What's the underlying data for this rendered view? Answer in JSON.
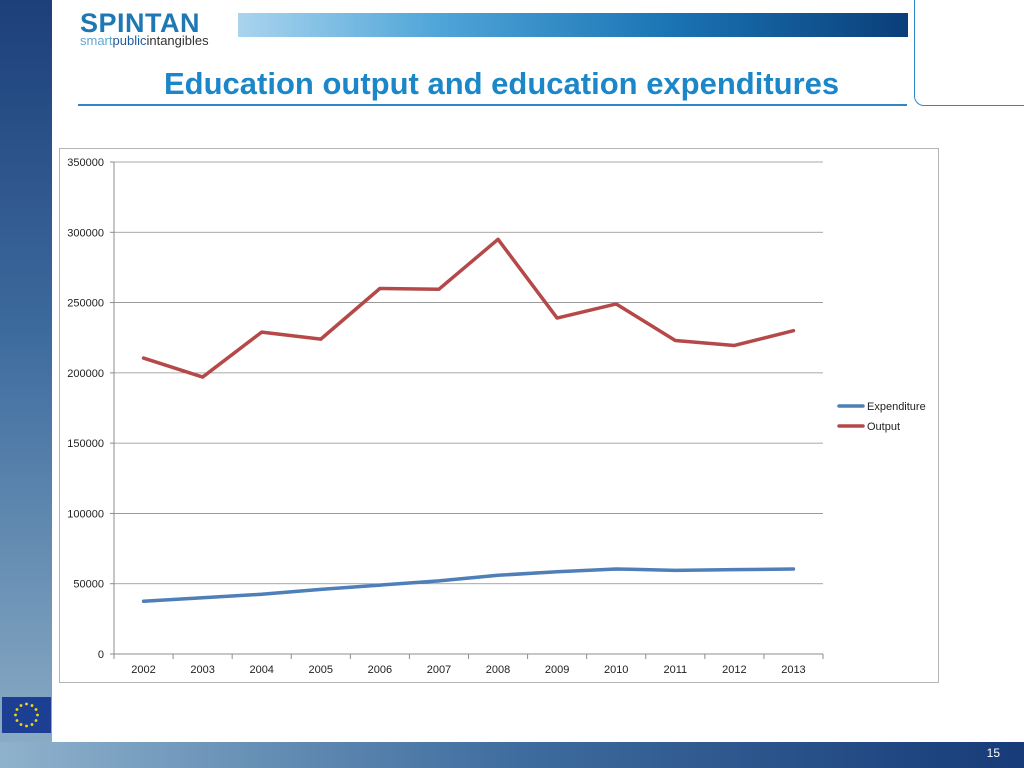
{
  "header": {
    "logo_main": "SPINTAN",
    "logo_sub_part1": "smart",
    "logo_sub_part2": "public",
    "logo_sub_part3": "intangibles",
    "title": "Education output and education expenditures"
  },
  "footer": {
    "page_number": "15"
  },
  "colors": {
    "title": "#1b87c9",
    "expenditure": "#4f7fb8",
    "output": "#b5494a",
    "accent_line": "#2f88c5"
  },
  "icons": {
    "eu_flag": "eu-flag-icon"
  },
  "chart_data": {
    "type": "line",
    "title": "",
    "xlabel": "",
    "ylabel": "",
    "categories": [
      "2002",
      "2003",
      "2004",
      "2005",
      "2006",
      "2007",
      "2008",
      "2009",
      "2010",
      "2011",
      "2012",
      "2013"
    ],
    "ylim": [
      0,
      350000
    ],
    "yticks": [
      0,
      50000,
      100000,
      150000,
      200000,
      250000,
      300000,
      350000
    ],
    "grid": true,
    "legend_position": "right",
    "series": [
      {
        "name": "Expenditure",
        "color": "#4f7fb8",
        "values": [
          37500,
          40000,
          42500,
          46000,
          49000,
          52000,
          56000,
          58500,
          60500,
          59500,
          60000,
          60500
        ]
      },
      {
        "name": "Output",
        "color": "#b5494a",
        "values": [
          210500,
          197000,
          229000,
          224000,
          260000,
          259500,
          295000,
          239000,
          249000,
          223000,
          219500,
          230000
        ]
      }
    ]
  }
}
